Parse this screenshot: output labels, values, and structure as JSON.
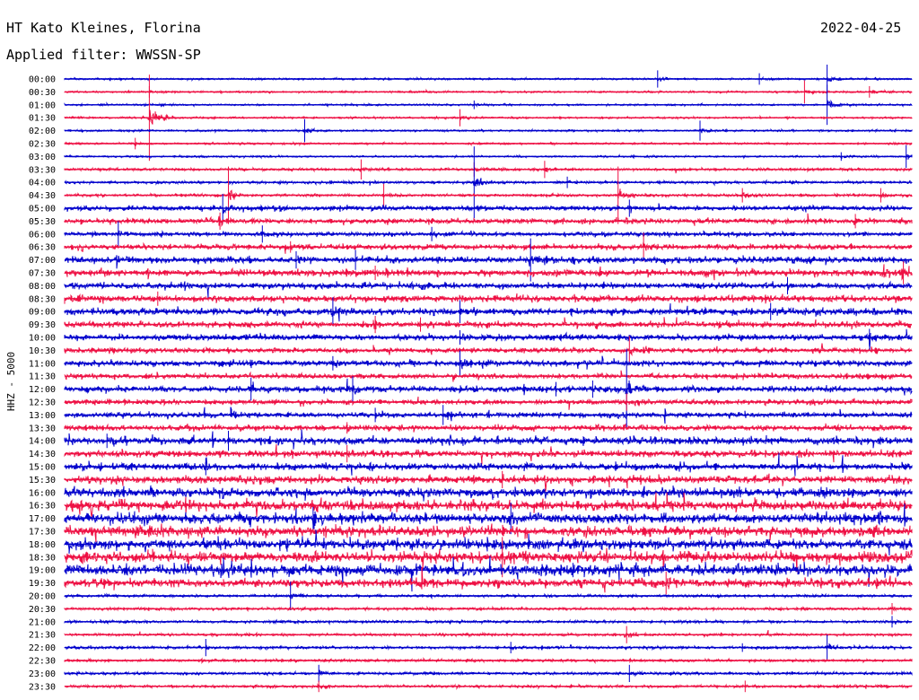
{
  "header": {
    "station": "HT Kato Kleines, Florina",
    "date": "2022-04-25",
    "filter_label": "Applied filter: WWSSN-SP"
  },
  "chart_data": {
    "type": "line",
    "title": "HT Kato Kleines, Florina",
    "ylabel": "HHZ - 5000",
    "row_labels": [
      "00:00",
      "00:30",
      "01:00",
      "01:30",
      "02:00",
      "02:30",
      "03:00",
      "03:30",
      "04:00",
      "04:30",
      "05:00",
      "05:30",
      "06:00",
      "06:30",
      "07:00",
      "07:30",
      "08:00",
      "08:30",
      "09:00",
      "09:30",
      "10:00",
      "10:30",
      "11:00",
      "11:30",
      "12:00",
      "12:30",
      "13:00",
      "13:30",
      "14:00",
      "14:30",
      "15:00",
      "15:30",
      "16:00",
      "16:30",
      "17:00",
      "17:30",
      "18:00",
      "18:30",
      "19:00",
      "19:30",
      "20:00",
      "20:30",
      "21:00",
      "21:30",
      "22:00",
      "22:30",
      "23:00",
      "23:30"
    ],
    "trace_colors": [
      "#0000cc",
      "#ee1144"
    ],
    "row_noise_level": [
      0.2,
      0.2,
      0.2,
      0.2,
      0.2,
      0.2,
      0.2,
      0.3,
      0.3,
      0.3,
      0.6,
      0.6,
      0.5,
      0.6,
      0.8,
      0.8,
      0.7,
      0.8,
      0.8,
      0.7,
      0.7,
      0.6,
      0.7,
      0.6,
      0.7,
      0.6,
      0.6,
      0.7,
      0.9,
      0.8,
      0.8,
      0.9,
      1.1,
      1.2,
      1.2,
      1.2,
      1.3,
      1.3,
      1.3,
      1.0,
      0.3,
      0.3,
      0.3,
      0.3,
      0.3,
      0.3,
      0.3,
      0.3
    ],
    "events": [
      {
        "row": 0,
        "minute": 21.0,
        "amplitude": 0.6
      },
      {
        "row": 0,
        "minute": 24.6,
        "amplitude": 0.4
      },
      {
        "row": 0,
        "minute": 27.0,
        "amplitude": 1.0
      },
      {
        "row": 1,
        "minute": 3.0,
        "amplitude": 0.4
      },
      {
        "row": 1,
        "minute": 26.2,
        "amplitude": 0.8
      },
      {
        "row": 1,
        "minute": 28.5,
        "amplitude": 0.4
      },
      {
        "row": 2,
        "minute": 27.0,
        "amplitude": 1.4
      },
      {
        "row": 2,
        "minute": 14.5,
        "amplitude": 0.3
      },
      {
        "row": 3,
        "minute": 3.0,
        "amplitude": 4.0
      },
      {
        "row": 3,
        "minute": 14.0,
        "amplitude": 0.6
      },
      {
        "row": 4,
        "minute": 8.5,
        "amplitude": 0.8
      },
      {
        "row": 4,
        "minute": 22.5,
        "amplitude": 0.7
      },
      {
        "row": 5,
        "minute": 2.5,
        "amplitude": 0.4
      },
      {
        "row": 6,
        "minute": 29.8,
        "amplitude": 0.8
      },
      {
        "row": 6,
        "minute": 27.5,
        "amplitude": 0.3
      },
      {
        "row": 7,
        "minute": 10.5,
        "amplitude": 0.7
      },
      {
        "row": 7,
        "minute": 17.0,
        "amplitude": 0.6
      },
      {
        "row": 7,
        "minute": 14.5,
        "amplitude": 0.5
      },
      {
        "row": 8,
        "minute": 14.5,
        "amplitude": 2.5
      },
      {
        "row": 8,
        "minute": 17.8,
        "amplitude": 0.4
      },
      {
        "row": 9,
        "minute": 5.8,
        "amplitude": 2.0
      },
      {
        "row": 9,
        "minute": 11.3,
        "amplitude": 0.8
      },
      {
        "row": 9,
        "minute": 19.6,
        "amplitude": 2.0
      },
      {
        "row": 9,
        "minute": 24.0,
        "amplitude": 0.5
      },
      {
        "row": 9,
        "minute": 28.9,
        "amplitude": 0.5
      },
      {
        "row": 10,
        "minute": 5.6,
        "amplitude": 1.0
      },
      {
        "row": 10,
        "minute": 20.0,
        "amplitude": 0.6
      },
      {
        "row": 11,
        "minute": 5.5,
        "amplitude": 0.6
      },
      {
        "row": 11,
        "minute": 28.0,
        "amplitude": 0.5
      },
      {
        "row": 12,
        "minute": 1.9,
        "amplitude": 0.9
      },
      {
        "row": 12,
        "minute": 7.0,
        "amplitude": 0.6
      },
      {
        "row": 12,
        "minute": 13.0,
        "amplitude": 0.5
      },
      {
        "row": 13,
        "minute": 20.5,
        "amplitude": 1.0
      },
      {
        "row": 13,
        "minute": 8.0,
        "amplitude": 0.4
      },
      {
        "row": 14,
        "minute": 16.5,
        "amplitude": 1.5
      },
      {
        "row": 14,
        "minute": 10.3,
        "amplitude": 0.7
      },
      {
        "row": 14,
        "minute": 8.2,
        "amplitude": 0.6
      },
      {
        "row": 15,
        "minute": 11.0,
        "amplitude": 0.5
      },
      {
        "row": 15,
        "minute": 29.7,
        "amplitude": 0.8
      },
      {
        "row": 16,
        "minute": 25.6,
        "amplitude": 0.6
      },
      {
        "row": 17,
        "minute": 3.3,
        "amplitude": 0.5
      },
      {
        "row": 18,
        "minute": 9.5,
        "amplitude": 1.0
      },
      {
        "row": 18,
        "minute": 14.0,
        "amplitude": 0.8
      },
      {
        "row": 18,
        "minute": 25.0,
        "amplitude": 0.6
      },
      {
        "row": 19,
        "minute": 11.0,
        "amplitude": 0.6
      },
      {
        "row": 19,
        "minute": 12.6,
        "amplitude": 0.5
      },
      {
        "row": 20,
        "minute": 14.0,
        "amplitude": 0.5
      },
      {
        "row": 20,
        "minute": 28.5,
        "amplitude": 0.6
      },
      {
        "row": 21,
        "minute": 20.0,
        "amplitude": 1.0
      },
      {
        "row": 22,
        "minute": 14.0,
        "amplitude": 0.9
      },
      {
        "row": 22,
        "minute": 9.5,
        "amplitude": 0.5
      },
      {
        "row": 24,
        "minute": 19.9,
        "amplitude": 2.8
      },
      {
        "row": 24,
        "minute": 6.6,
        "amplitude": 0.8
      },
      {
        "row": 24,
        "minute": 10.2,
        "amplitude": 0.9
      },
      {
        "row": 24,
        "minute": 18.7,
        "amplitude": 0.6
      },
      {
        "row": 24,
        "minute": 17.4,
        "amplitude": 0.5
      },
      {
        "row": 25,
        "minute": 19.9,
        "amplitude": 0.6
      },
      {
        "row": 26,
        "minute": 13.4,
        "amplitude": 0.7
      },
      {
        "row": 26,
        "minute": 11.0,
        "amplitude": 0.5
      },
      {
        "row": 27,
        "minute": 10.0,
        "amplitude": 0.4
      },
      {
        "row": 28,
        "minute": 5.8,
        "amplitude": 0.7
      },
      {
        "row": 28,
        "minute": 1.5,
        "amplitude": 0.5
      },
      {
        "row": 29,
        "minute": 10.0,
        "amplitude": 0.6
      },
      {
        "row": 30,
        "minute": 5.0,
        "amplitude": 0.6
      },
      {
        "row": 31,
        "minute": 15.5,
        "amplitude": 0.6
      },
      {
        "row": 34,
        "minute": 15.8,
        "amplitude": 1.1
      },
      {
        "row": 34,
        "minute": 8.8,
        "amplitude": 0.8
      },
      {
        "row": 37,
        "minute": 15.5,
        "amplitude": 1.4
      },
      {
        "row": 38,
        "minute": 18.0,
        "amplitude": 0.5
      },
      {
        "row": 39,
        "minute": 21.3,
        "amplitude": 0.8
      },
      {
        "row": 40,
        "minute": 8.0,
        "amplitude": 1.0
      },
      {
        "row": 41,
        "minute": 29.3,
        "amplitude": 0.4
      },
      {
        "row": 42,
        "minute": 29.3,
        "amplitude": 0.4
      },
      {
        "row": 43,
        "minute": 19.9,
        "amplitude": 0.6
      },
      {
        "row": 44,
        "minute": 5.0,
        "amplitude": 0.6
      },
      {
        "row": 44,
        "minute": 15.8,
        "amplitude": 0.4
      },
      {
        "row": 44,
        "minute": 27.0,
        "amplitude": 0.9
      },
      {
        "row": 44,
        "minute": 24.0,
        "amplitude": 0.3
      },
      {
        "row": 46,
        "minute": 9.0,
        "amplitude": 0.6
      },
      {
        "row": 46,
        "minute": 20.0,
        "amplitude": 0.6
      },
      {
        "row": 47,
        "minute": 9.0,
        "amplitude": 0.4
      },
      {
        "row": 47,
        "minute": 24.1,
        "amplitude": 0.4
      }
    ]
  }
}
